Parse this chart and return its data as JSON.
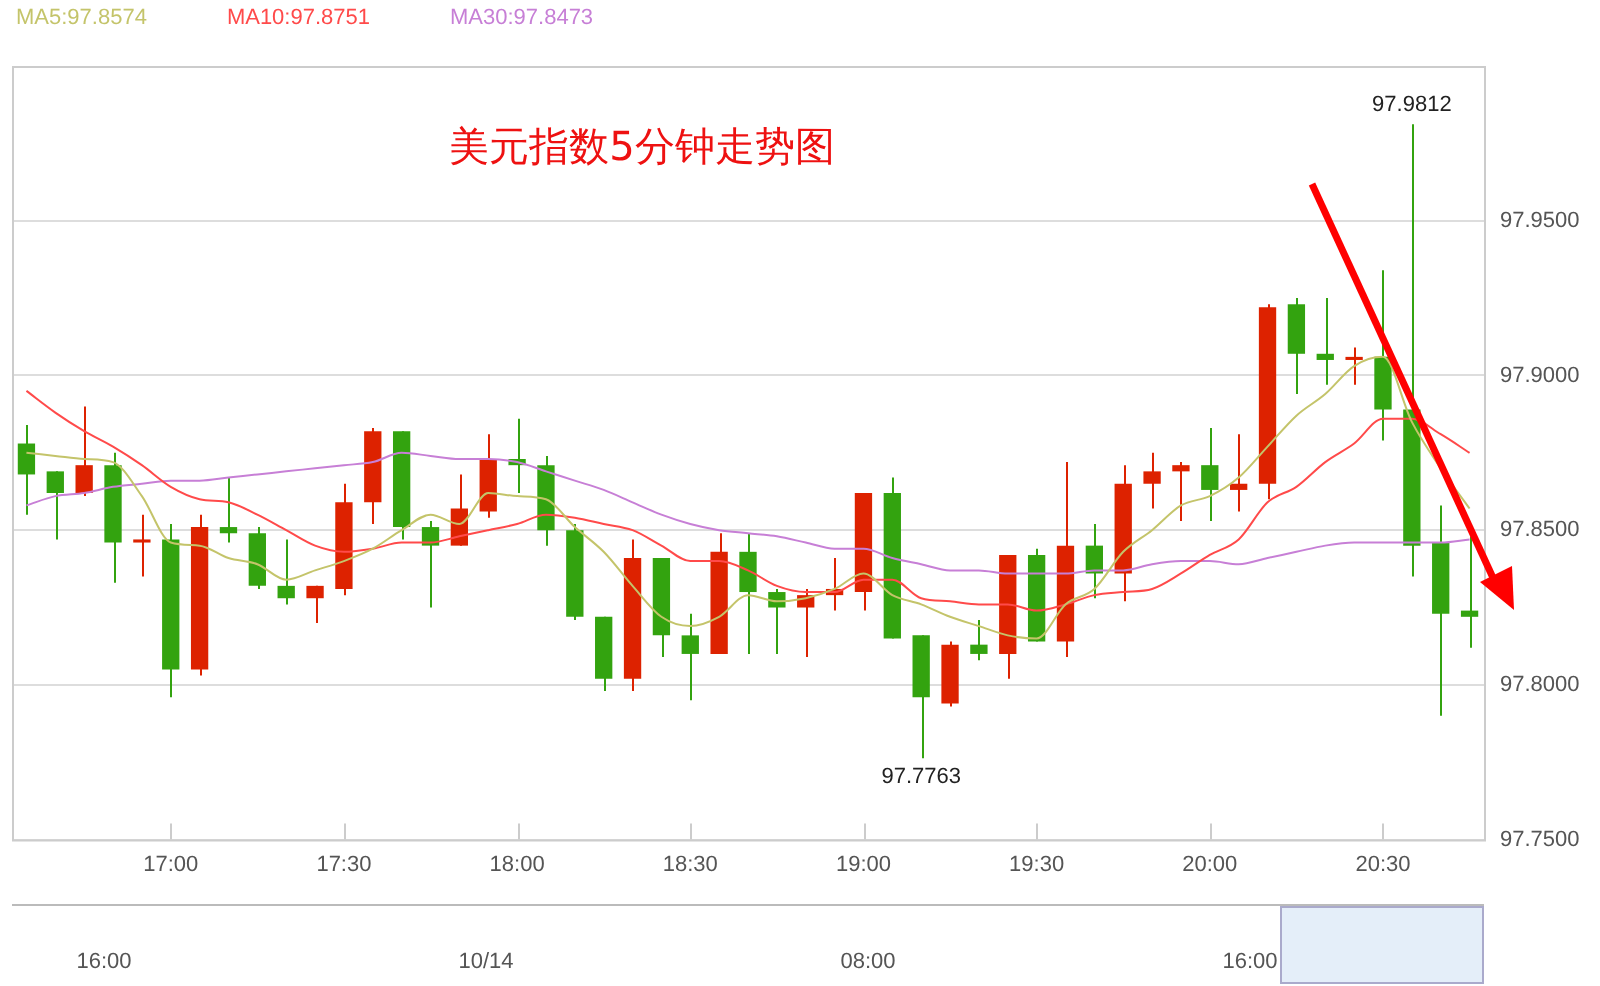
{
  "chart_data": {
    "type": "candlestick",
    "title": "美元指数5分钟走势图",
    "categories": [
      null,
      null,
      null,
      null,
      null,
      "17:00",
      null,
      null,
      null,
      null,
      null,
      "17:30",
      null,
      null,
      null,
      null,
      null,
      "18:00",
      null,
      null,
      null,
      null,
      null,
      "18:30",
      null,
      null,
      null,
      null,
      null,
      "19:00",
      null,
      null,
      null,
      null,
      null,
      "19:30",
      null,
      null,
      null,
      null,
      null,
      "20:00",
      null,
      null,
      null,
      null,
      null,
      "20:30",
      null,
      null,
      null
    ],
    "ohlc": [
      [
        97.878,
        97.884,
        97.855,
        97.868
      ],
      [
        97.869,
        97.869,
        97.847,
        97.862
      ],
      [
        97.862,
        97.89,
        97.861,
        97.871
      ],
      [
        97.871,
        97.875,
        97.833,
        97.846
      ],
      [
        97.846,
        97.855,
        97.835,
        97.847
      ],
      [
        97.847,
        97.852,
        97.796,
        97.805
      ],
      [
        97.805,
        97.855,
        97.803,
        97.851
      ],
      [
        97.851,
        97.867,
        97.846,
        97.849
      ],
      [
        97.849,
        97.851,
        97.831,
        97.832
      ],
      [
        97.832,
        97.847,
        97.826,
        97.828
      ],
      [
        97.828,
        97.832,
        97.82,
        97.832
      ],
      [
        97.831,
        97.865,
        97.829,
        97.859
      ],
      [
        97.859,
        97.883,
        97.852,
        97.882
      ],
      [
        97.882,
        97.882,
        97.847,
        97.851
      ],
      [
        97.851,
        97.853,
        97.825,
        97.845
      ],
      [
        97.845,
        97.868,
        97.845,
        97.857
      ],
      [
        97.856,
        97.881,
        97.854,
        97.873
      ],
      [
        97.873,
        97.886,
        97.862,
        97.871
      ],
      [
        97.871,
        97.874,
        97.845,
        97.85
      ],
      [
        97.85,
        97.852,
        97.821,
        97.822
      ],
      [
        97.822,
        97.822,
        97.798,
        97.802
      ],
      [
        97.802,
        97.847,
        97.798,
        97.841
      ],
      [
        97.841,
        97.841,
        97.809,
        97.816
      ],
      [
        97.816,
        97.823,
        97.795,
        97.81
      ],
      [
        97.81,
        97.849,
        97.81,
        97.843
      ],
      [
        97.843,
        97.849,
        97.81,
        97.83
      ],
      [
        97.83,
        97.831,
        97.81,
        97.825
      ],
      [
        97.825,
        97.831,
        97.809,
        97.829
      ],
      [
        97.829,
        97.841,
        97.824,
        97.831
      ],
      [
        97.83,
        97.862,
        97.824,
        97.862
      ],
      [
        97.862,
        97.867,
        97.815,
        97.815
      ],
      [
        97.816,
        97.816,
        97.7763,
        97.796
      ],
      [
        97.794,
        97.814,
        97.793,
        97.813
      ],
      [
        97.813,
        97.821,
        97.808,
        97.81
      ],
      [
        97.81,
        97.842,
        97.802,
        97.842
      ],
      [
        97.842,
        97.844,
        97.814,
        97.814
      ],
      [
        97.814,
        97.872,
        97.809,
        97.845
      ],
      [
        97.845,
        97.852,
        97.828,
        97.836
      ],
      [
        97.836,
        97.871,
        97.827,
        97.865
      ],
      [
        97.865,
        97.875,
        97.857,
        97.869
      ],
      [
        97.869,
        97.872,
        97.853,
        97.871
      ],
      [
        97.871,
        97.883,
        97.853,
        97.863
      ],
      [
        97.863,
        97.881,
        97.856,
        97.865
      ],
      [
        97.865,
        97.923,
        97.86,
        97.922
      ],
      [
        97.923,
        97.925,
        97.894,
        97.907
      ],
      [
        97.907,
        97.925,
        97.897,
        97.905
      ],
      [
        97.905,
        97.909,
        97.897,
        97.906
      ],
      [
        97.906,
        97.934,
        97.879,
        97.889
      ],
      [
        97.889,
        97.9812,
        97.835,
        97.845
      ],
      [
        97.846,
        97.858,
        97.79,
        97.823
      ],
      [
        97.824,
        97.848,
        97.812,
        97.822
      ]
    ],
    "colors": [
      "#33a30f",
      "#33a30f",
      "#dd2200",
      "#33a30f",
      "#dd2200",
      "#33a30f",
      "#dd2200",
      "#33a30f",
      "#33a30f",
      "#33a30f",
      "#dd2200",
      "#dd2200",
      "#dd2200",
      "#33a30f",
      "#33a30f",
      "#dd2200",
      "#dd2200",
      "#33a30f",
      "#33a30f",
      "#33a30f",
      "#33a30f",
      "#dd2200",
      "#33a30f",
      "#33a30f",
      "#dd2200",
      "#33a30f",
      "#33a30f",
      "#dd2200",
      "#dd2200",
      "#dd2200",
      "#33a30f",
      "#33a30f",
      "#dd2200",
      "#33a30f",
      "#dd2200",
      "#33a30f",
      "#dd2200",
      "#33a30f",
      "#dd2200",
      "#dd2200",
      "#dd2200",
      "#33a30f",
      "#dd2200",
      "#dd2200",
      "#33a30f",
      "#33a30f",
      "#dd2200",
      "#33a30f",
      "#33a30f",
      "#33a30f",
      "#33a30f"
    ],
    "series": [
      {
        "type": "line",
        "name": "MA5:97.8574",
        "color": "#c4c46a",
        "values": [
          97.875,
          97.874,
          97.873,
          97.872,
          97.861,
          97.846,
          97.845,
          97.841,
          97.839,
          97.834,
          97.837,
          97.84,
          97.844,
          97.85,
          97.855,
          97.852,
          97.862,
          97.861,
          97.86,
          97.851,
          97.843,
          97.832,
          97.822,
          97.819,
          97.822,
          97.829,
          97.827,
          97.828,
          97.831,
          97.836,
          97.829,
          97.826,
          97.822,
          97.819,
          97.816,
          97.815,
          97.826,
          97.831,
          97.843,
          97.85,
          97.858,
          97.861,
          97.867,
          97.877,
          97.887,
          97.894,
          97.903,
          97.906,
          97.885,
          97.87,
          97.857
        ]
      },
      {
        "type": "line",
        "name": "MA10:97.8751",
        "color": "#ff4a4a",
        "values": [
          97.895,
          97.888,
          97.882,
          97.877,
          97.871,
          97.864,
          97.86,
          97.859,
          97.855,
          97.85,
          97.845,
          97.843,
          97.844,
          97.846,
          97.846,
          97.848,
          97.85,
          97.852,
          97.855,
          97.854,
          97.852,
          97.85,
          97.845,
          97.84,
          97.84,
          97.837,
          97.832,
          97.83,
          97.83,
          97.834,
          97.834,
          97.828,
          97.827,
          97.826,
          97.826,
          97.824,
          97.826,
          97.829,
          97.83,
          97.831,
          97.836,
          97.842,
          97.847,
          97.859,
          97.864,
          97.872,
          97.878,
          97.886,
          97.886,
          97.881,
          97.875
        ]
      },
      {
        "type": "line",
        "name": "MA30:97.8473",
        "color": "#c77fd6",
        "values": [
          97.858,
          97.861,
          97.862,
          97.864,
          97.865,
          97.866,
          97.866,
          97.867,
          97.868,
          97.869,
          97.87,
          97.871,
          97.872,
          97.875,
          97.874,
          97.873,
          97.873,
          97.872,
          97.869,
          97.866,
          97.863,
          97.859,
          97.855,
          97.852,
          97.85,
          97.849,
          97.848,
          97.846,
          97.844,
          97.844,
          97.841,
          97.839,
          97.837,
          97.837,
          97.836,
          97.836,
          97.836,
          97.837,
          97.837,
          97.839,
          97.84,
          97.84,
          97.839,
          97.841,
          97.843,
          97.845,
          97.846,
          97.846,
          97.846,
          97.846,
          97.847
        ]
      }
    ],
    "ylim": [
      97.75,
      98.0
    ],
    "yticks": [
      {
        "value": 97.75,
        "label": "97.7500"
      },
      {
        "value": 97.8,
        "label": "97.8000"
      },
      {
        "value": 97.85,
        "label": "97.8500"
      },
      {
        "value": 97.9,
        "label": "97.9000"
      },
      {
        "value": 97.95,
        "label": "97.9500"
      }
    ],
    "grid": "y",
    "legend": "top left",
    "annotations": [
      {
        "text": "97.9812",
        "y": 97.9812
      },
      {
        "text": "97.7763",
        "y": 97.7763
      },
      "16:00",
      "10/14",
      "08:00",
      "16:00"
    ]
  }
}
